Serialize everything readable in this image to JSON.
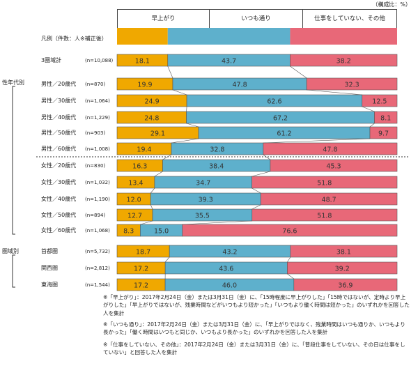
{
  "unit_note": "（構成比：%）",
  "legend_label": "凡例（件数：人※補正後）",
  "colors": {
    "early": "#f0a800",
    "usual": "#5eb0cc",
    "other": "#e86878"
  },
  "groups": {
    "gender_age": "性年代別",
    "region": "圏域別"
  },
  "chart_data": {
    "type": "bar",
    "stacked": true,
    "orientation": "horizontal",
    "series_names": [
      "早上がり",
      "いつも通り",
      "仕事をしていない、その他"
    ],
    "rows": [
      {
        "label": "3圏域計",
        "n": "(n=10,088)",
        "values": [
          18.1,
          43.7,
          38.2
        ]
      },
      {
        "label": "男性／20歳代",
        "n": "(n=870)",
        "values": [
          19.9,
          47.8,
          32.3
        ]
      },
      {
        "label": "男性／30歳代",
        "n": "(n=1,064)",
        "values": [
          24.9,
          62.6,
          12.5
        ]
      },
      {
        "label": "男性／40歳代",
        "n": "(n=1,229)",
        "values": [
          24.8,
          67.2,
          8.1
        ]
      },
      {
        "label": "男性／50歳代",
        "n": "(n=903)",
        "values": [
          29.1,
          61.2,
          9.7
        ]
      },
      {
        "label": "男性／60歳代",
        "n": "(n=1,008)",
        "values": [
          19.4,
          32.8,
          47.8
        ]
      },
      {
        "label": "女性／20歳代",
        "n": "(n=830)",
        "values": [
          16.3,
          38.4,
          45.3
        ]
      },
      {
        "label": "女性／30歳代",
        "n": "(n=1,032)",
        "values": [
          13.4,
          34.7,
          51.8
        ]
      },
      {
        "label": "女性／40歳代",
        "n": "(n=1,190)",
        "values": [
          12.0,
          39.3,
          48.7
        ]
      },
      {
        "label": "女性／50歳代",
        "n": "(n=894)",
        "values": [
          12.7,
          35.5,
          51.8
        ]
      },
      {
        "label": "女性／60歳代",
        "n": "(n=1,068)",
        "values": [
          8.3,
          15.0,
          76.6
        ]
      },
      {
        "label": "首都圏",
        "n": "(n=5,732)",
        "values": [
          18.7,
          43.2,
          38.1
        ]
      },
      {
        "label": "関西圏",
        "n": "(n=2,812)",
        "values": [
          17.2,
          43.6,
          39.2
        ]
      },
      {
        "label": "東海圏",
        "n": "(n=1,544)",
        "values": [
          17.2,
          46.0,
          36.9
        ]
      }
    ]
  },
  "notes": [
    "※「早上がり」：2017年2月24日（金）または3月31日（金）に、「15時程度に早上がりした」「15時ではないが、定時より早上がりした」「早上がりではないが、残業時間などがいつもより短かった」「いつもより働く時間は短かった」のいずれかを回答した人を集計",
    "※「いつも通り」：2017年2月24日（金）または3月31日（金）に、「早上がりではなく、残業時間はいつも通りか、いつもより長かった」「働く時間はいつもと同じか、いつもより長かった」のいずれかを回答した人を集計",
    "※「仕事をしていない、その他」：2017年2月24日（金）または3月31日（金）に、「普段仕事をしていない、その日は仕事をしていない」と回答した人を集計"
  ]
}
